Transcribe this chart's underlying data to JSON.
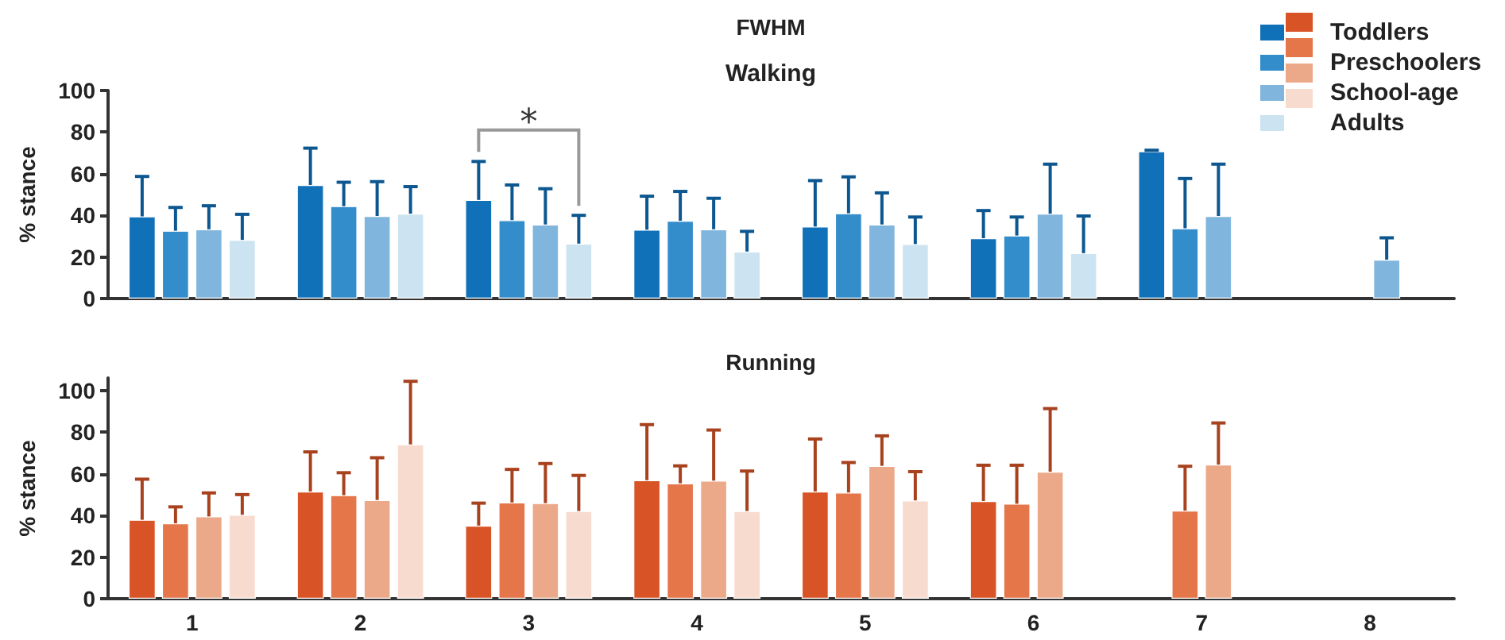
{
  "chart_data": [
    {
      "type": "bar",
      "title": "FWHM",
      "subtitle": "Walking",
      "ylabel": "% stance",
      "categories": [
        "1",
        "2",
        "3",
        "4",
        "5",
        "6",
        "7",
        "8"
      ],
      "ylim": [
        0,
        100
      ],
      "yticks": [
        0,
        20,
        40,
        60,
        80,
        100
      ],
      "grid": false,
      "legend": "top right",
      "tick_labels": "y",
      "annotations": [
        "*"
      ],
      "series": [
        {
          "name": "Toddlers",
          "color": "#1070b8",
          "values": [
            39.5,
            54.6,
            47.4,
            33.1,
            34.6,
            29,
            70.8,
            null
          ],
          "errors": [
            [
              39.5,
              58.7
            ],
            [
              54.6,
              72.3
            ],
            [
              47.4,
              65.9
            ],
            [
              33.1,
              49.2
            ],
            [
              34.6,
              56.7
            ],
            [
              29,
              42.3
            ],
            [
              70.8,
              71.3
            ],
            null
          ]
        },
        {
          "name": "Preschoolers",
          "color": "#348dcb",
          "values": [
            32.6,
            44.4,
            37.7,
            37.4,
            41,
            30.3,
            33.8,
            null
          ],
          "errors": [
            [
              32.6,
              43.8
            ],
            [
              44.4,
              55.9
            ],
            [
              37.7,
              54.6
            ],
            [
              37.4,
              51.5
            ],
            [
              41,
              58.5
            ],
            [
              30.3,
              39.2
            ],
            [
              33.8,
              57.7
            ],
            null
          ]
        },
        {
          "name": "School-age",
          "color": "#80b6dd",
          "values": [
            33.3,
            39.7,
            35.6,
            33.3,
            35.6,
            40.8,
            39.7,
            18.7
          ],
          "errors": [
            [
              33.3,
              44.6
            ],
            [
              39.7,
              56.2
            ],
            [
              35.6,
              52.8
            ],
            [
              33.3,
              48.2
            ],
            [
              35.6,
              50.8
            ],
            [
              40.8,
              64.6
            ],
            [
              39.7,
              64.6
            ],
            [
              18.7,
              29.2
            ]
          ]
        },
        {
          "name": "Adults",
          "color": "#cce3f2",
          "values": [
            28.2,
            40.8,
            26.4,
            22.6,
            26.2,
            21.8,
            null,
            null
          ],
          "errors": [
            [
              28.2,
              40.5
            ],
            [
              40.8,
              53.8
            ],
            [
              26.4,
              40
            ],
            [
              22.6,
              32.3
            ],
            [
              26.2,
              39.2
            ],
            [
              21.8,
              39.7
            ],
            null,
            null
          ]
        }
      ]
    },
    {
      "type": "bar",
      "title": "Running",
      "ylabel": "% stance",
      "categories": [
        "1",
        "2",
        "3",
        "4",
        "5",
        "6",
        "7",
        "8"
      ],
      "ylim": [
        0,
        106
      ],
      "yticks": [
        0,
        20,
        40,
        60,
        80,
        100
      ],
      "grid": false,
      "series": [
        {
          "color": "#d85427",
          "values": [
            37.9,
            51.5,
            35.1,
            56.9,
            51.5,
            46.9,
            null,
            null
          ],
          "errors": [
            [
              37.9,
              57.4
            ],
            [
              51.5,
              70.5
            ],
            [
              35.1,
              45.9
            ],
            [
              56.9,
              83.6
            ],
            [
              51.5,
              76.7
            ],
            [
              46.9,
              64.1
            ],
            null,
            null
          ]
        },
        {
          "color": "#e5764a",
          "values": [
            36.2,
            49.7,
            46.2,
            55.4,
            51,
            45.6,
            42.3,
            null
          ],
          "errors": [
            [
              36.2,
              44.1
            ],
            [
              49.7,
              60.5
            ],
            [
              46.2,
              62.1
            ],
            [
              55.4,
              63.8
            ],
            [
              51,
              65.4
            ],
            [
              45.6,
              64.1
            ],
            [
              42.3,
              63.6
            ],
            null
          ]
        },
        {
          "color": "#eca98a",
          "values": [
            39.5,
            47.4,
            45.9,
            56.7,
            63.8,
            61,
            64.4,
            null
          ],
          "errors": [
            [
              39.5,
              50.8
            ],
            [
              47.4,
              67.7
            ],
            [
              45.9,
              64.9
            ],
            [
              56.7,
              81
            ],
            [
              63.8,
              78.2
            ],
            [
              61,
              91.3
            ],
            [
              64.4,
              84.4
            ],
            null
          ]
        },
        {
          "color": "#f8dbcf",
          "values": [
            40.3,
            74.1,
            42.1,
            42.1,
            47.2,
            null,
            null,
            null
          ],
          "errors": [
            [
              40.3,
              50
            ],
            [
              74.1,
              104.4
            ],
            [
              42.1,
              59.2
            ],
            [
              42.1,
              61.3
            ],
            [
              47.2,
              61
            ],
            null,
            null,
            null
          ]
        }
      ]
    }
  ]
}
